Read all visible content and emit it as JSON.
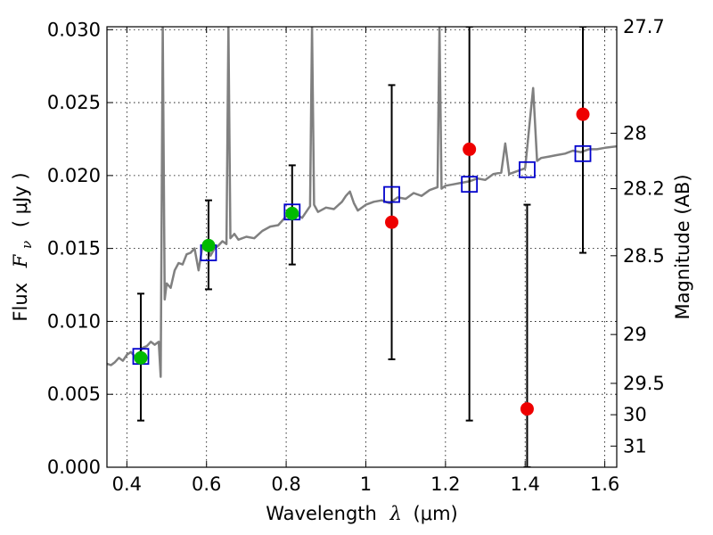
{
  "chart_data": {
    "type": "scatter",
    "xlabel_prefix": "Wavelength",
    "xlabel_symbol": "λ",
    "xlabel_unit": "(μm)",
    "ylabel_prefix": "Flux",
    "ylabel_symbol": "F",
    "ylabel_subscript": "ν",
    "ylabel_unit": "( μJy )",
    "y2label": "Magnitude (AB)",
    "xlim": [
      0.35,
      1.63
    ],
    "ylim": [
      0.0,
      0.0302
    ],
    "x_ticks": [
      0.4,
      0.6,
      0.8,
      1.0,
      1.2,
      1.4,
      1.6
    ],
    "x_tick_labels": [
      "0.4",
      "0.6",
      "0.8",
      "1",
      "1.2",
      "1.4",
      "1.6"
    ],
    "y_ticks": [
      0.0,
      0.005,
      0.01,
      0.015,
      0.02,
      0.025,
      0.03
    ],
    "y_tick_labels": [
      "0.000",
      "0.005",
      "0.010",
      "0.015",
      "0.020",
      "0.025",
      "0.030"
    ],
    "y2_ticks": [
      {
        "label": "27.7",
        "flux": 0.0302
      },
      {
        "label": "28",
        "flux": 0.0229
      },
      {
        "label": "28.2",
        "flux": 0.0191
      },
      {
        "label": "28.5",
        "flux": 0.0145
      },
      {
        "label": "29",
        "flux": 0.0091
      },
      {
        "label": "29.5",
        "flux": 0.00575
      },
      {
        "label": "30",
        "flux": 0.0036
      },
      {
        "label": "31",
        "flux": 0.00145
      }
    ],
    "grid": true,
    "colors": {
      "model": "#808080",
      "model_points": "#0000cc",
      "green_points": "#00bb00",
      "red_points": "#ee0000",
      "errorbar": "#000000"
    },
    "series": [
      {
        "type": "line",
        "points": [
          [
            0.35,
            0.0071
          ],
          [
            0.36,
            0.007
          ],
          [
            0.37,
            0.0072
          ],
          [
            0.38,
            0.0075
          ],
          [
            0.39,
            0.0073
          ],
          [
            0.4,
            0.0077
          ],
          [
            0.41,
            0.0079
          ],
          [
            0.42,
            0.0076
          ],
          [
            0.43,
            0.0078
          ],
          [
            0.44,
            0.0082
          ],
          [
            0.45,
            0.0083
          ],
          [
            0.46,
            0.0086
          ],
          [
            0.47,
            0.0084
          ],
          [
            0.48,
            0.0086
          ],
          [
            0.485,
            0.0062
          ],
          [
            0.49,
            0.0302
          ],
          [
            0.495,
            0.0115
          ],
          [
            0.5,
            0.0126
          ],
          [
            0.51,
            0.0123
          ],
          [
            0.52,
            0.0135
          ],
          [
            0.53,
            0.014
          ],
          [
            0.54,
            0.0139
          ],
          [
            0.55,
            0.0146
          ],
          [
            0.56,
            0.0147
          ],
          [
            0.57,
            0.015
          ],
          [
            0.58,
            0.0135
          ],
          [
            0.59,
            0.0152
          ],
          [
            0.6,
            0.0154
          ],
          [
            0.61,
            0.0145
          ],
          [
            0.62,
            0.015
          ],
          [
            0.63,
            0.0152
          ],
          [
            0.64,
            0.0155
          ],
          [
            0.65,
            0.0153
          ],
          [
            0.655,
            0.0302
          ],
          [
            0.66,
            0.0157
          ],
          [
            0.67,
            0.016
          ],
          [
            0.68,
            0.0156
          ],
          [
            0.7,
            0.0158
          ],
          [
            0.72,
            0.0157
          ],
          [
            0.74,
            0.0162
          ],
          [
            0.76,
            0.0165
          ],
          [
            0.78,
            0.0166
          ],
          [
            0.8,
            0.0172
          ],
          [
            0.82,
            0.0174
          ],
          [
            0.84,
            0.0171
          ],
          [
            0.86,
            0.0179
          ],
          [
            0.865,
            0.0302
          ],
          [
            0.87,
            0.018
          ],
          [
            0.88,
            0.0175
          ],
          [
            0.9,
            0.0178
          ],
          [
            0.92,
            0.0177
          ],
          [
            0.94,
            0.0182
          ],
          [
            0.95,
            0.0186
          ],
          [
            0.96,
            0.0189
          ],
          [
            0.97,
            0.0181
          ],
          [
            0.98,
            0.0176
          ],
          [
            1.0,
            0.018
          ],
          [
            1.02,
            0.0182
          ],
          [
            1.04,
            0.0183
          ],
          [
            1.06,
            0.0181
          ],
          [
            1.08,
            0.0185
          ],
          [
            1.1,
            0.0184
          ],
          [
            1.12,
            0.0188
          ],
          [
            1.14,
            0.0186
          ],
          [
            1.16,
            0.019
          ],
          [
            1.18,
            0.0192
          ],
          [
            1.185,
            0.0302
          ],
          [
            1.19,
            0.0191
          ],
          [
            1.2,
            0.0193
          ],
          [
            1.22,
            0.0194
          ],
          [
            1.24,
            0.0195
          ],
          [
            1.26,
            0.0196
          ],
          [
            1.28,
            0.0198
          ],
          [
            1.3,
            0.0197
          ],
          [
            1.32,
            0.0201
          ],
          [
            1.34,
            0.0202
          ],
          [
            1.35,
            0.0222
          ],
          [
            1.36,
            0.0201
          ],
          [
            1.38,
            0.0203
          ],
          [
            1.4,
            0.0205
          ],
          [
            1.42,
            0.026
          ],
          [
            1.43,
            0.021
          ],
          [
            1.44,
            0.0212
          ],
          [
            1.46,
            0.0213
          ],
          [
            1.48,
            0.0214
          ],
          [
            1.5,
            0.0215
          ],
          [
            1.52,
            0.0217
          ],
          [
            1.54,
            0.0216
          ],
          [
            1.56,
            0.0218
          ],
          [
            1.58,
            0.0218
          ],
          [
            1.6,
            0.0219
          ],
          [
            1.63,
            0.022
          ]
        ]
      },
      {
        "type": "scatter",
        "marker": "open-square",
        "points": [
          [
            0.435,
            0.0076
          ],
          [
            0.605,
            0.0147
          ],
          [
            0.815,
            0.0175
          ],
          [
            1.065,
            0.0187
          ],
          [
            1.26,
            0.0194
          ],
          [
            1.405,
            0.0204
          ],
          [
            1.545,
            0.0215
          ]
        ]
      },
      {
        "type": "scatter",
        "marker": "filled-circle",
        "color": "green",
        "points": [
          [
            0.435,
            0.0075
          ],
          [
            0.605,
            0.0152
          ],
          [
            0.815,
            0.0174
          ]
        ]
      },
      {
        "type": "scatter",
        "marker": "filled-circle",
        "color": "red",
        "points": [
          [
            1.065,
            0.0168
          ],
          [
            1.26,
            0.0218
          ],
          [
            1.405,
            0.004
          ],
          [
            1.545,
            0.0242
          ]
        ]
      },
      {
        "type": "errorbar",
        "bars": [
          {
            "x": 0.435,
            "low": 0.0032,
            "high": 0.0119
          },
          {
            "x": 0.605,
            "low": 0.0122,
            "high": 0.0183
          },
          {
            "x": 0.815,
            "low": 0.0139,
            "high": 0.0207
          },
          {
            "x": 1.065,
            "low": 0.0074,
            "high": 0.0262
          },
          {
            "x": 1.26,
            "low": 0.0032,
            "high": 0.0302
          },
          {
            "x": 1.405,
            "low": 0.0,
            "high": 0.018
          },
          {
            "x": 1.545,
            "low": 0.0147,
            "high": 0.0302
          }
        ]
      }
    ]
  }
}
